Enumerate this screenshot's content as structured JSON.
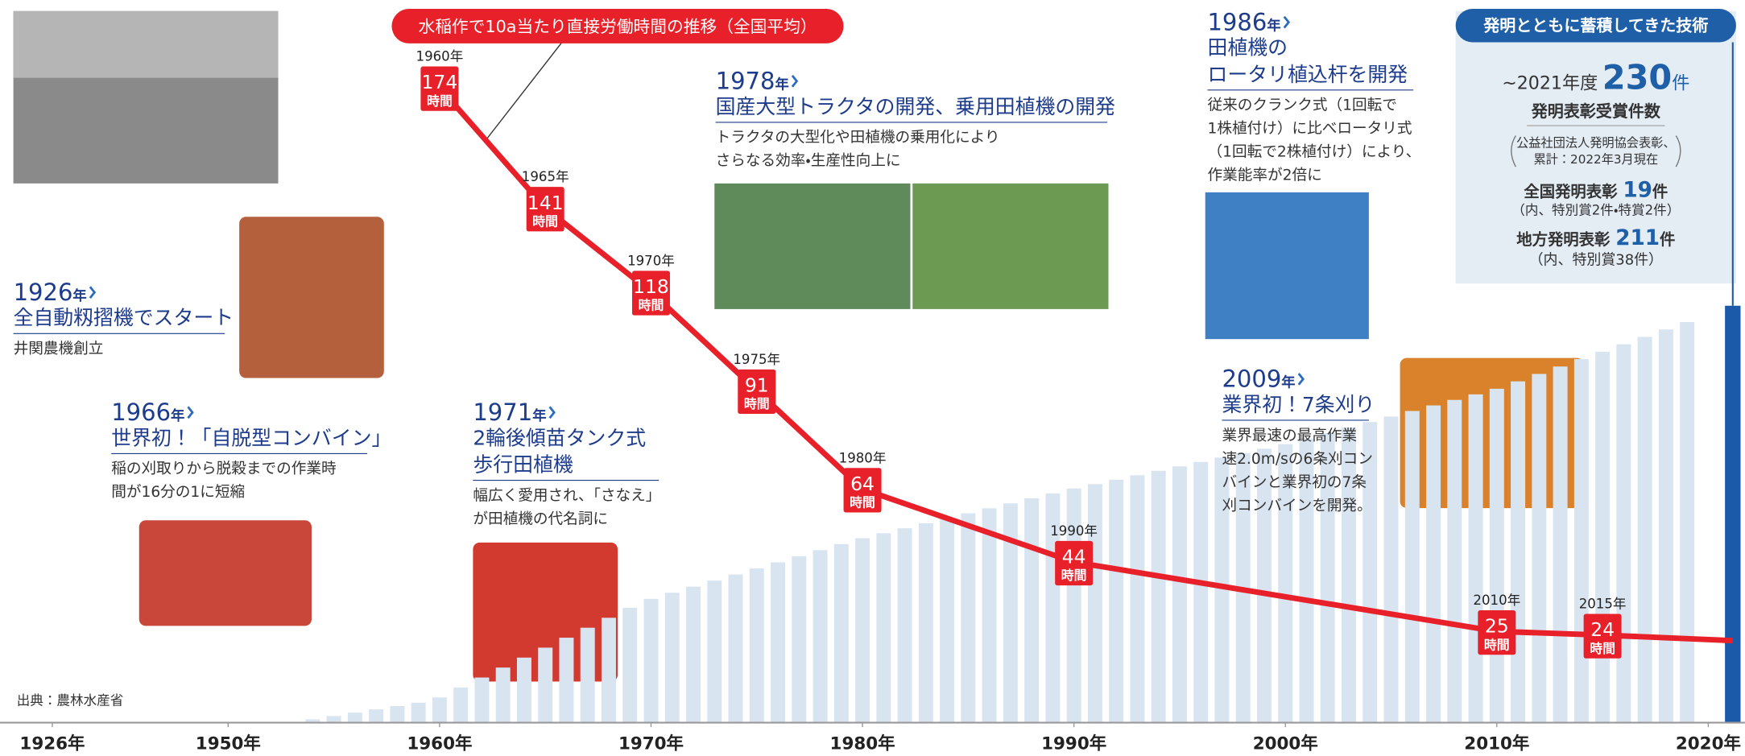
{
  "chart_data": {
    "type": "line",
    "title": "水稲作で10a当たり直接労働時間の推移（全国平均）",
    "x": [
      1960,
      1965,
      1970,
      1975,
      1980,
      1990,
      2010,
      2015
    ],
    "x_labels": [
      "1960年",
      "1965年",
      "1970年",
      "1975年",
      "1980年",
      "1990年",
      "2010年",
      "2015年"
    ],
    "values": [
      174,
      141,
      118,
      91,
      64,
      44,
      25,
      24
    ],
    "unit_label": "時間",
    "color": "#e8202a",
    "xlim": [
      1926,
      2020
    ],
    "xticks": [
      {
        "value": 1926,
        "label": "1926年"
      },
      {
        "value": 1950,
        "label": "1950年"
      },
      {
        "value": 1960,
        "label": "1960年"
      },
      {
        "value": 1970,
        "label": "1970年"
      },
      {
        "value": 1980,
        "label": "1980年"
      },
      {
        "value": 1990,
        "label": "1990年"
      },
      {
        "value": 2000,
        "label": "2000年"
      },
      {
        "value": 2010,
        "label": "2010年"
      },
      {
        "value": 2020,
        "label": "2020年"
      }
    ],
    "ylim": [
      0,
      198
    ],
    "source": "出典：農林水産省"
  },
  "year_suffix": "年",
  "events": [
    {
      "year": "1926",
      "title": [
        "全自動籾摺機でスタート"
      ],
      "text": [
        "井関農機創立"
      ]
    },
    {
      "year": "1966",
      "title": [
        "世界初！「自脱型コンバイン」"
      ],
      "text": [
        "稲の刈取りから脱穀までの作業時",
        "間が16分の1に短縮"
      ]
    },
    {
      "year": "1971",
      "title": [
        "2輪後傾苗タンク式",
        "歩行田植機"
      ],
      "text": [
        "幅広く愛用され、「さなえ」",
        "が田植機の代名詞に"
      ]
    },
    {
      "year": "1978",
      "title": [
        "国産大型トラクタの開発、乗用田植機の開発"
      ],
      "text": [
        "トラクタの大型化や田植機の乗用化により",
        "さらなる効率・生産性向上に"
      ]
    },
    {
      "year": "1986",
      "title": [
        "田植機の",
        "ロータリ植込杆を開発"
      ],
      "text": [
        "従来のクランク式（1回転で",
        "1株植付け）に比べロータリ式",
        "（1回転で2株植付け）により、",
        "作業能率が2倍に"
      ]
    },
    {
      "year": "2009",
      "title": [
        "業界初！7条刈り"
      ],
      "text": [
        "業界最速の最高作業",
        "速2.0m/sの6条刈コン",
        "バインと業界初の7条",
        "刈コンバインを開発。"
      ]
    }
  ],
  "panel": {
    "header": "発明とともに蓄積してきた技術",
    "period": "~2021年度",
    "total": "230",
    "count_unit": "件",
    "total_label": "発明表彰受賞件数",
    "note": [
      "公益社団法人発明協会表彰、",
      "累計：2022年3月現在"
    ],
    "national_label": "全国発明表彰",
    "national": "19",
    "national_note": "（内、特別賞2件・特賞2件）",
    "local_label": "地方発明表彰",
    "local": "211",
    "local_note": "（内、特別賞38件）"
  }
}
